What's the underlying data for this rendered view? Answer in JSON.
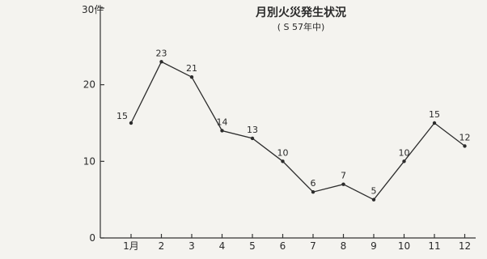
{
  "chart_data": {
    "type": "line",
    "title": "月別火災発生状況",
    "subtitle": "( S 57年中)",
    "ylabel": "30件",
    "xlabel": "",
    "categories": [
      "1月",
      "2",
      "3",
      "4",
      "5",
      "6",
      "7",
      "8",
      "9",
      "10",
      "11",
      "12"
    ],
    "values": [
      15,
      23,
      21,
      14,
      13,
      10,
      6,
      7,
      5,
      10,
      15,
      12
    ],
    "ylim": [
      0,
      30
    ],
    "yticks": [
      "0",
      "10",
      "20"
    ],
    "data_labels": [
      "15",
      "23",
      "21",
      "14",
      "13",
      "10",
      "6",
      "7",
      "5",
      "10",
      "15",
      "12"
    ],
    "grid": false,
    "legend": "none"
  }
}
